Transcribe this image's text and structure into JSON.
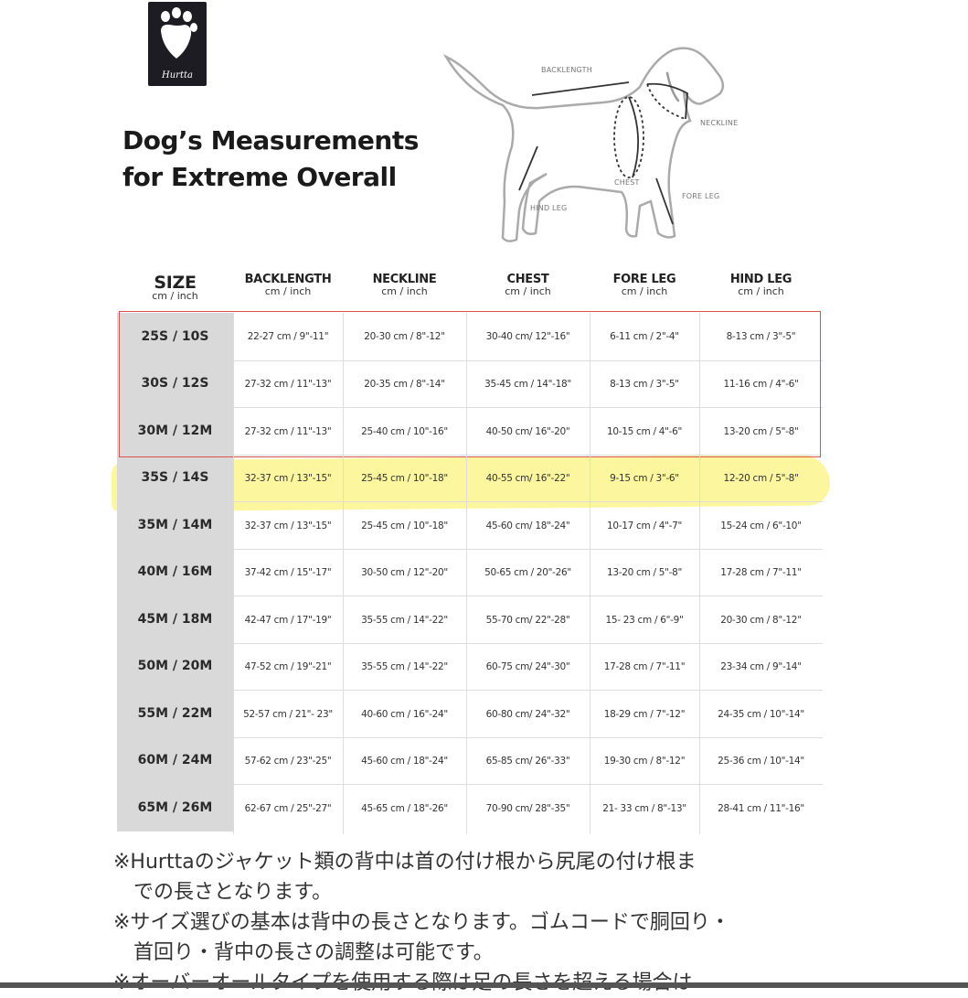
{
  "brand": {
    "logo_text": "Hurtta",
    "logo_icon": "paw-icon"
  },
  "title": {
    "line1": "Dog’s Measurements",
    "line2": "for Extreme Overall"
  },
  "diagram_labels": {
    "backlength": "BACKLENGTH",
    "neckline": "NECKLINE",
    "chest": "CHEST",
    "fore_leg": "FORE LEG",
    "hind_leg": "HIND LEG"
  },
  "table": {
    "headers": [
      {
        "label": "SIZE",
        "unit": "cm / inch"
      },
      {
        "label": "BACKLENGTH",
        "unit": "cm / inch"
      },
      {
        "label": "NECKLINE",
        "unit": "cm / inch"
      },
      {
        "label": "CHEST",
        "unit": "cm / inch"
      },
      {
        "label": "FORE LEG",
        "unit": "cm / inch"
      },
      {
        "label": "HIND LEG",
        "unit": "cm / inch"
      }
    ],
    "rows": [
      [
        "25S / 10S",
        "22-27 cm / 9\"-11\"",
        "20-30 cm / 8\"-12\"",
        "30-40 cm/ 12\"-16\"",
        "6-11 cm / 2\"-4\"",
        "8-13 cm / 3\"-5\""
      ],
      [
        "30S / 12S",
        "27-32 cm / 11\"-13\"",
        "20-35 cm / 8\"-14\"",
        "35-45 cm / 14\"-18\"",
        "8-13 cm / 3\"-5\"",
        "11-16 cm / 4\"-6\""
      ],
      [
        "30M / 12M",
        "27-32 cm / 11\"-13\"",
        "25-40 cm / 10\"-16\"",
        "40-50 cm/ 16\"-20\"",
        "10-15 cm / 4\"-6\"",
        "13-20 cm / 5\"-8\""
      ],
      [
        "35S / 14S",
        "32-37 cm / 13\"-15\"",
        "25-45 cm / 10\"-18\"",
        "40-55 cm/ 16\"-22\"",
        "9-15 cm / 3\"-6\"",
        "12-20 cm / 5\"-8\""
      ],
      [
        "35M / 14M",
        "32-37 cm / 13\"-15\"",
        "25-45 cm / 10\"-18\"",
        "45-60 cm/ 18\"-24\"",
        "10-17 cm / 4\"-7\"",
        "15-24 cm / 6\"-10\""
      ],
      [
        "40M / 16M",
        "37-42 cm / 15\"-17\"",
        "30-50 cm / 12\"-20\"",
        "50-65 cm / 20\"-26\"",
        "13-20 cm / 5\"-8\"",
        "17-28 cm / 7\"-11\""
      ],
      [
        "45M / 18M",
        "42-47 cm / 17\"-19\"",
        "35-55 cm / 14\"-22\"",
        "55-70 cm/ 22\"-28\"",
        "15- 23 cm / 6\"-9\"",
        "20-30 cm / 8\"-12\""
      ],
      [
        "50M / 20M",
        "47-52 cm / 19\"-21\"",
        "35-55 cm / 14\"-22\"",
        "60-75 cm/ 24\"-30\"",
        "17-28 cm / 7\"-11\"",
        "23-34 cm / 9\"-14\""
      ],
      [
        "55M / 22M",
        "52-57 cm / 21\"- 23\"",
        "40-60 cm / 16\"-24\"",
        "60-80 cm/ 24\"-32\"",
        "18-29 cm / 7\"-12\"",
        "24-35 cm / 10\"-14\""
      ],
      [
        "60M / 24M",
        "57-62 cm / 23\"-25\"",
        "45-60 cm / 18\"-24\"",
        "65-85 cm/ 26\"-33\"",
        "19-30 cm / 8\"-12\"",
        "25-36 cm / 10\"-14\""
      ],
      [
        "65M / 26M",
        "62-67 cm / 25\"-27\"",
        "45-65 cm / 18\"-26\"",
        "70-90 cm/ 28\"-35\"",
        "21- 33 cm / 8\"-13\"",
        "28-41 cm / 11\"-16\""
      ]
    ],
    "boxed_rows": [
      "25S / 10S",
      "30S / 12S",
      "30M / 12M"
    ],
    "highlighted_row": "35S / 14S",
    "box_color": "#d9534f",
    "highlight_color": "#f7ee50"
  },
  "notes": {
    "note1_line1": "※Hurttaのジャケット類の背中は首の付け根から尻尾の付け根ま",
    "note1_line2": "での長さとなります。",
    "note2_line1": "※サイズ選びの基本は背中の長さとなります。ゴムコードで胴回り・",
    "note2_line2": "首回り・背中の長さの調整は可能です。",
    "note3_line1": "※オーバーオールタイプを使用する際は足の長さを超える場合は"
  }
}
